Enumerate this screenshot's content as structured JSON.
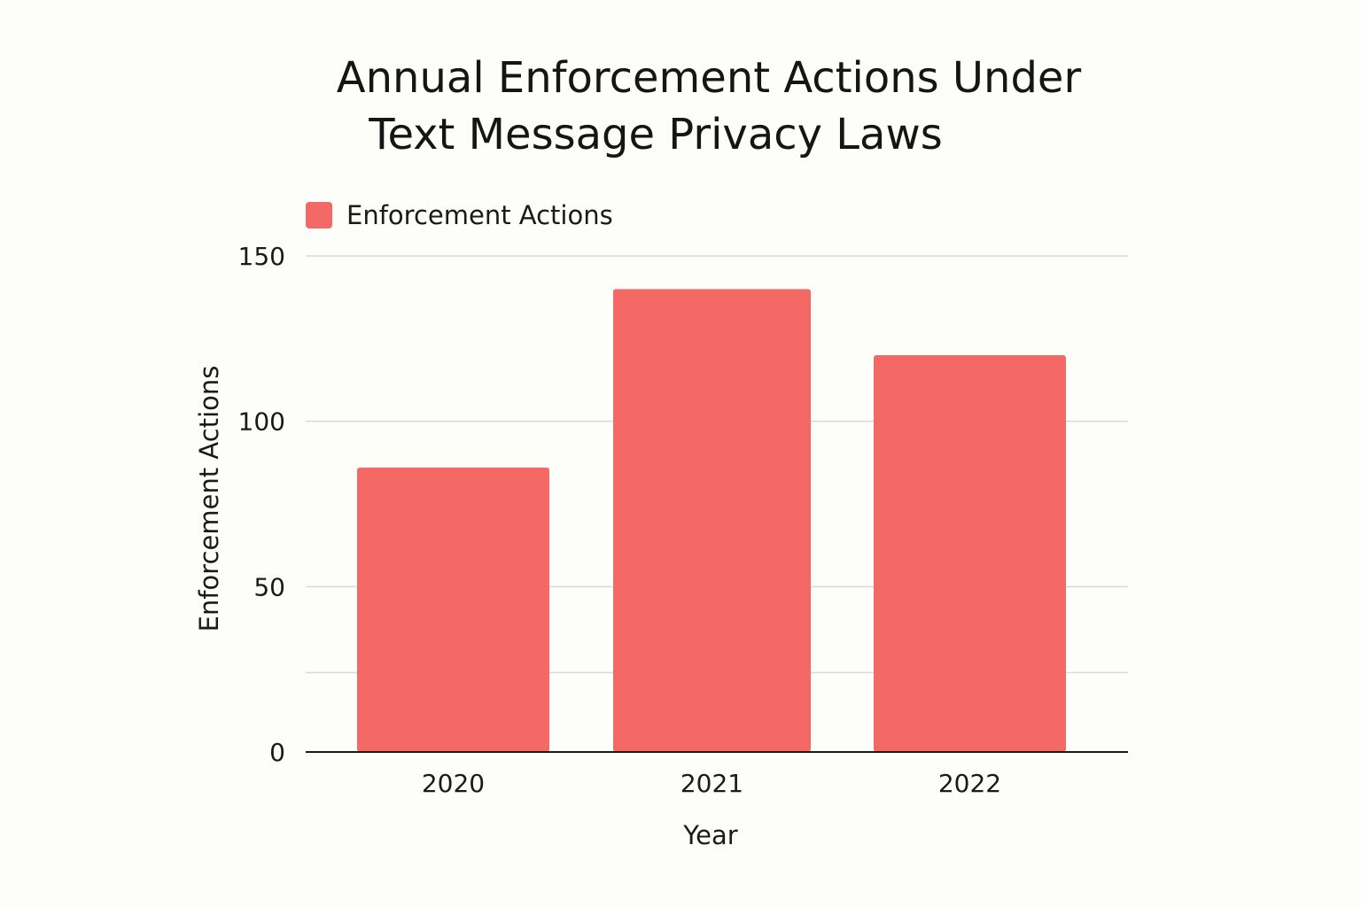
{
  "chart_data": {
    "type": "bar",
    "title": [
      "Annual Enforcement Actions Under",
      "Text Message Privacy Laws"
    ],
    "categories": [
      "2020",
      "2021",
      "2022"
    ],
    "series": [
      {
        "name": "Enforcement Actions",
        "values": [
          86,
          140,
          120
        ],
        "color": "#f46866"
      }
    ],
    "xlabel": "Year",
    "ylabel": "Enforcement Actions",
    "ylim": [
      0,
      150
    ],
    "yticks": [
      {
        "value": 0,
        "label": "0"
      },
      {
        "value": 50,
        "label": "50"
      },
      {
        "value": 100,
        "label": "100"
      },
      {
        "value": 150,
        "label": "150"
      }
    ],
    "gridlines": [
      50,
      100,
      150
    ],
    "legend": "top-left",
    "grid": true
  },
  "colors": {
    "background": "#fdfdf9",
    "bar": "#f46866",
    "grid": "#d9d9d9",
    "axis": "#1a1a1a",
    "text": "#161616"
  }
}
